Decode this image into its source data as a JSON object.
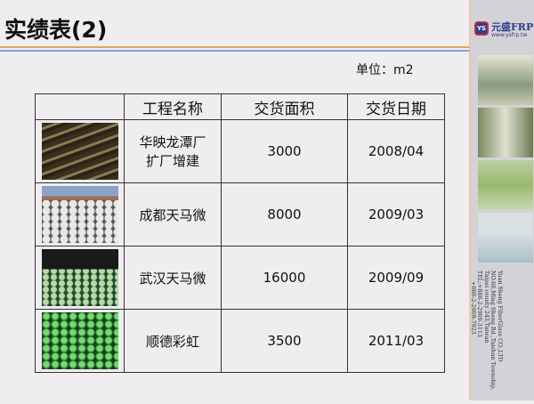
{
  "title": "实绩表(2)",
  "unit": "单位：m2",
  "table": {
    "headers": [
      "",
      "工程名称",
      "交货面积",
      "交货日期"
    ],
    "rows": [
      {
        "name_l1": "华映龙潭厂",
        "name_l2": "扩厂增建",
        "area": "3000",
        "date": "2008/04"
      },
      {
        "name_l1": "成都天马微",
        "name_l2": "",
        "area": "8000",
        "date": "2009/03"
      },
      {
        "name_l1": "武汉天马微",
        "name_l2": "",
        "area": "16000",
        "date": "2009/09"
      },
      {
        "name_l1": "顺德彩虹",
        "name_l2": "",
        "area": "3500",
        "date": "2011/03"
      }
    ]
  },
  "sidebar": {
    "logo_mark": "YS",
    "logo_name": "元盛FRP",
    "logo_url": "www.ysfrp.tw",
    "address": [
      "Yuan Sheng FiberGlass CO.,LTD",
      "NO.68,Ming Sheng Rd.,Taishan Township,",
      "Taipei county 243,Taiwan",
      "TEL:+886-2-2909-3113",
      "+886-2-2909-7923"
    ]
  },
  "colors": {
    "accent_orange": "#e2a45e",
    "accent_blue": "#7fa2dc",
    "brand": "#2c3e8c"
  }
}
